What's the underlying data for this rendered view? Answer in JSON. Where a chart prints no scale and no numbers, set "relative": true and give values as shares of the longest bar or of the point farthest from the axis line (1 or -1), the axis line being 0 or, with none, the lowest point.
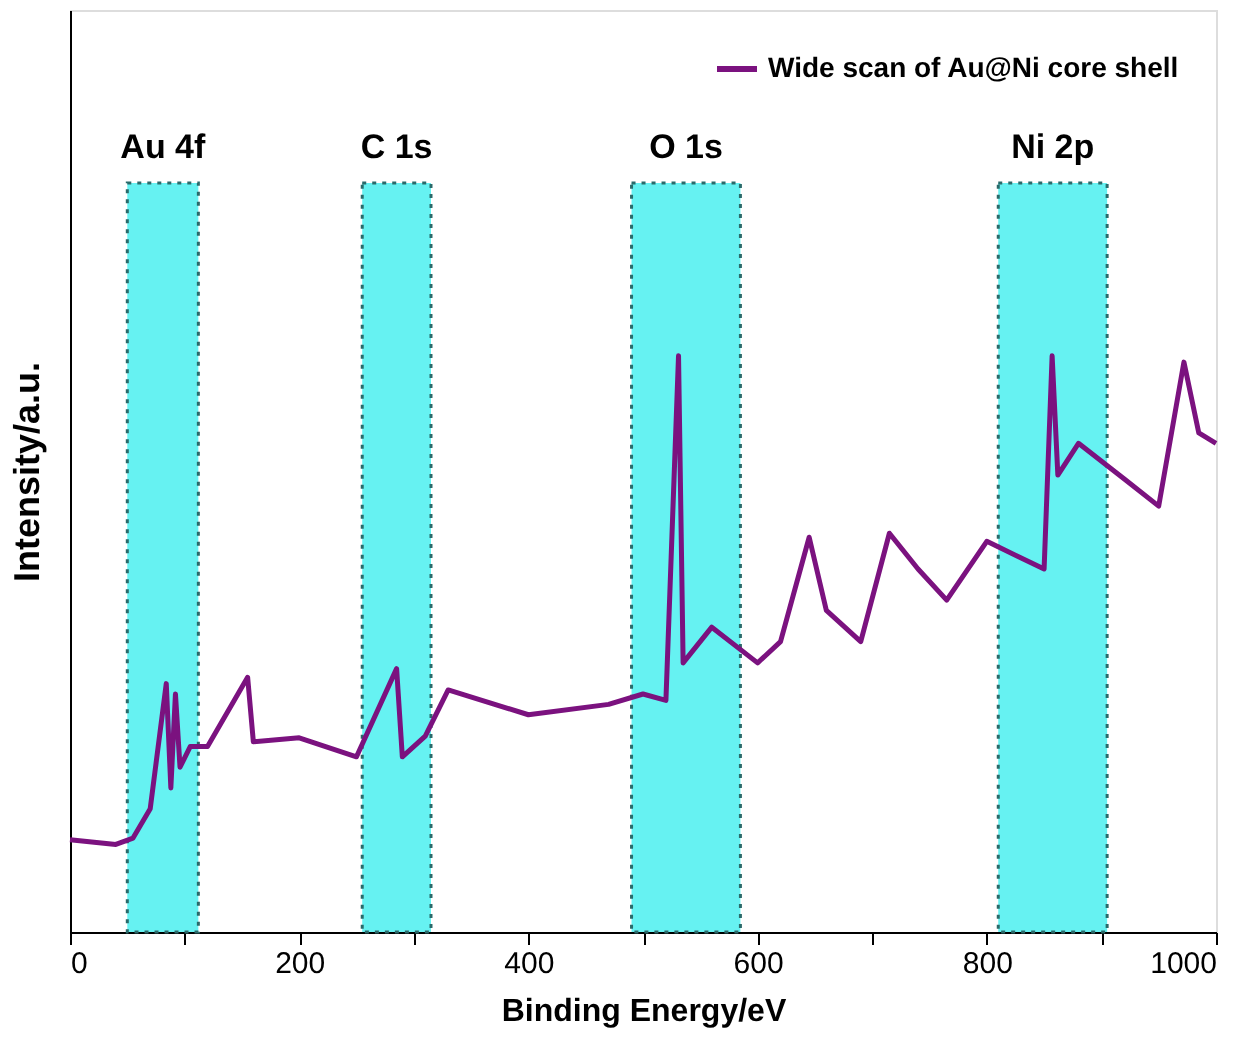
{
  "chart_data": {
    "type": "line",
    "xlabel": "Binding Energy/eV",
    "ylabel": "Intensity/a.u.",
    "relative": true,
    "xlim": [
      0,
      1000
    ],
    "xticks": [
      0,
      {
        "value": 100,
        "label": null
      },
      200,
      {
        "value": 300,
        "label": null
      },
      400,
      {
        "value": 500,
        "label": null
      },
      600,
      {
        "value": 700,
        "label": null
      },
      800,
      {
        "value": 900,
        "label": null
      },
      1000
    ],
    "grid": false,
    "legend": "top right",
    "line_style": "solid",
    "marker": "none",
    "series": [
      {
        "name": "Wide scan of Au@Ni core shell",
        "color": "#7b127f",
        "x": [
          0,
          40,
          55,
          70,
          84,
          88,
          92,
          96,
          105,
          120,
          155,
          160,
          200,
          250,
          285,
          290,
          310,
          330,
          400,
          470,
          500,
          520,
          531,
          535,
          560,
          600,
          620,
          645,
          660,
          690,
          715,
          740,
          765,
          800,
          830,
          850,
          857,
          862,
          880,
          920,
          950,
          972,
          985,
          1000
        ],
        "values": [
          0.16,
          0.152,
          0.163,
          0.214,
          0.431,
          0.25,
          0.413,
          0.286,
          0.322,
          0.322,
          0.442,
          0.33,
          0.337,
          0.304,
          0.457,
          0.304,
          0.34,
          0.42,
          0.377,
          0.395,
          0.413,
          0.402,
          1.0,
          0.467,
          0.529,
          0.467,
          0.504,
          0.685,
          0.558,
          0.504,
          0.692,
          0.63,
          0.576,
          0.678,
          0.649,
          0.63,
          1.0,
          0.793,
          0.848,
          0.786,
          0.739,
          0.989,
          0.866,
          0.848
        ]
      }
    ],
    "bands": [
      {
        "axis": "x",
        "from": 50,
        "to": 112,
        "label": "Au 4f",
        "color": "#66f2f2"
      },
      {
        "axis": "x",
        "from": 255,
        "to": 315,
        "label": "C 1s",
        "color": "#66f2f2"
      },
      {
        "axis": "x",
        "from": 490,
        "to": 585,
        "label": "O 1s",
        "color": "#66f2f2"
      },
      {
        "axis": "x",
        "from": 810,
        "to": 905,
        "label": "Ni 2p",
        "color": "#66f2f2"
      }
    ]
  }
}
